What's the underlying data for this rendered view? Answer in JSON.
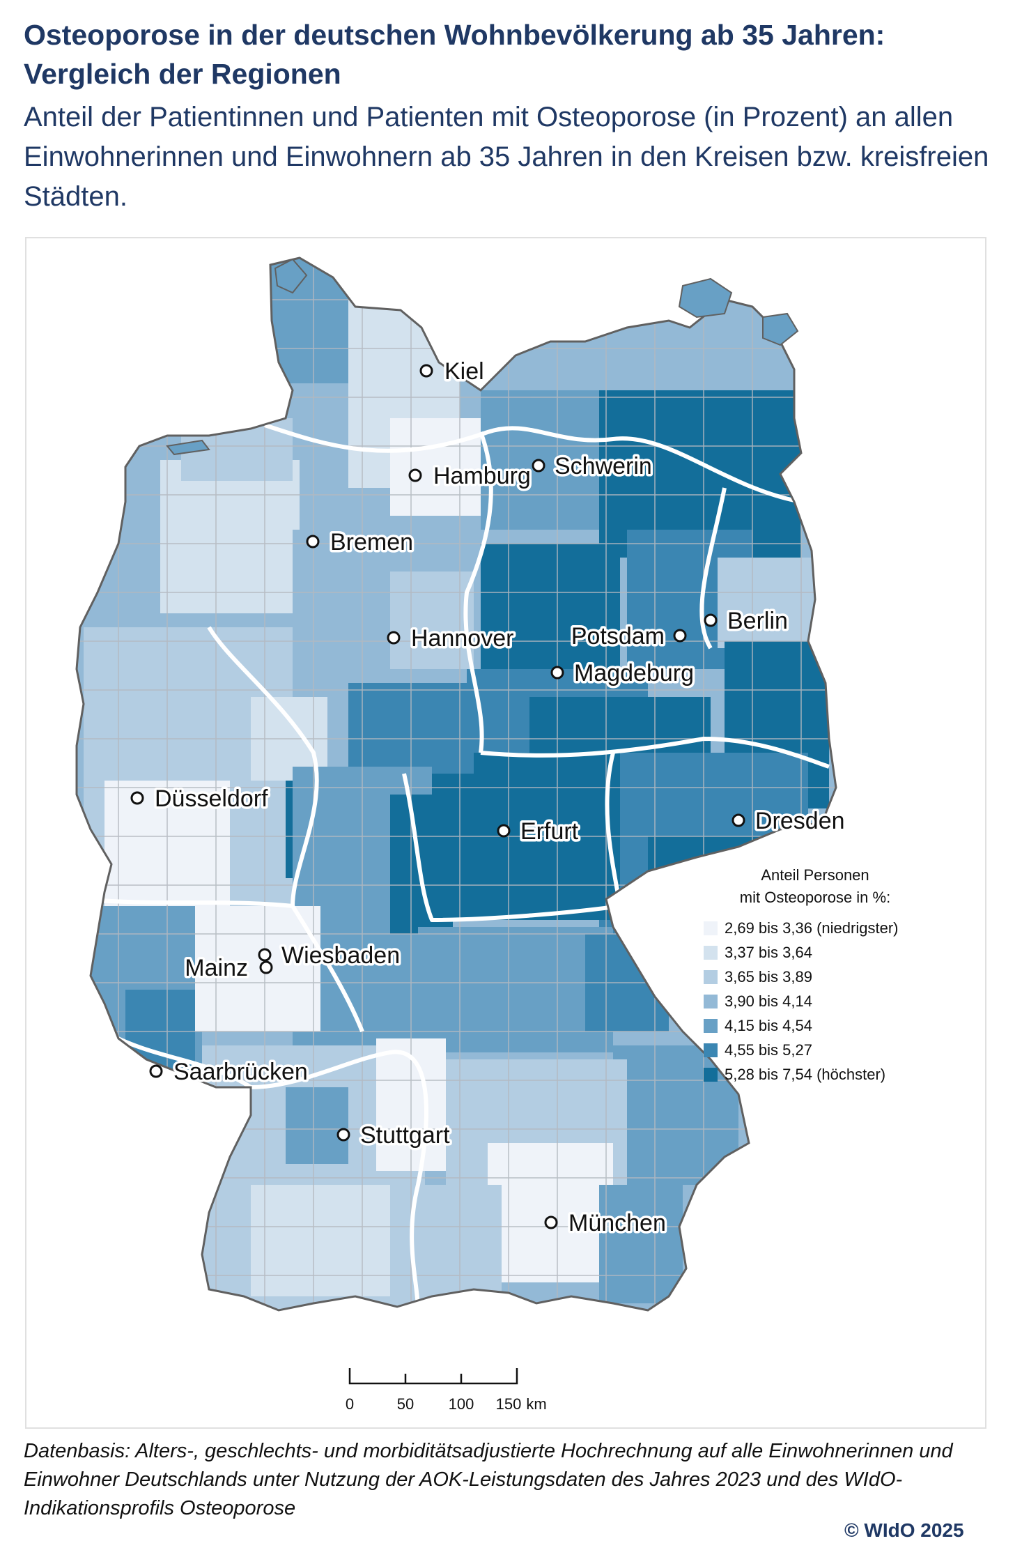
{
  "title": "Osteoporose in der deutschen Wohnbevölkerung ab 35 Jahren: Vergleich der Regionen",
  "subtitle": "Anteil der Patientinnen und Patienten mit Osteoporose (in Prozent) an allen Einwohnerinnen und Einwohnern ab 35 Jahren in den Kreisen bzw. kreisfreien Städten.",
  "legend": {
    "title_line1": "Anteil Personen",
    "title_line2": "mit Osteoporose in %:",
    "classes": [
      {
        "label": "2,69 bis 3,36 (niedrigster)",
        "color": "#eff3f9"
      },
      {
        "label": "3,37 bis 3,64",
        "color": "#d3e2ee"
      },
      {
        "label": "3,65 bis 3,89",
        "color": "#b3cde2"
      },
      {
        "label": "3,90 bis 4,14",
        "color": "#93b9d6"
      },
      {
        "label": "4,15 bis 4,54",
        "color": "#68a0c5"
      },
      {
        "label": "4,55 bis 5,27",
        "color": "#3b86b2"
      },
      {
        "label": "5,28 bis 7,54 (höchster)",
        "color": "#136e9a"
      }
    ]
  },
  "cities": [
    {
      "name": "Kiel"
    },
    {
      "name": "Hamburg"
    },
    {
      "name": "Schwerin"
    },
    {
      "name": "Bremen"
    },
    {
      "name": "Berlin"
    },
    {
      "name": "Potsdam"
    },
    {
      "name": "Hannover"
    },
    {
      "name": "Magdeburg"
    },
    {
      "name": "Düsseldorf"
    },
    {
      "name": "Erfurt"
    },
    {
      "name": "Dresden"
    },
    {
      "name": "Wiesbaden"
    },
    {
      "name": "Mainz"
    },
    {
      "name": "Saarbrücken"
    },
    {
      "name": "Stuttgart"
    },
    {
      "name": "München"
    }
  ],
  "scalebar": {
    "ticks": [
      "0",
      "50",
      "100",
      "150"
    ],
    "unit": "km"
  },
  "footnote": "Datenbasis: Alters-, geschlechts- und morbiditätsadjustierte Hochrechnung auf alle Einwohnerinnen und Einwohner Deutschlands unter Nutzung der AOK-Leistungsdaten des Jahres 2023 und des WIdO-Indikationsprofils Osteoporose",
  "copyright": "© WIdO 2025"
}
